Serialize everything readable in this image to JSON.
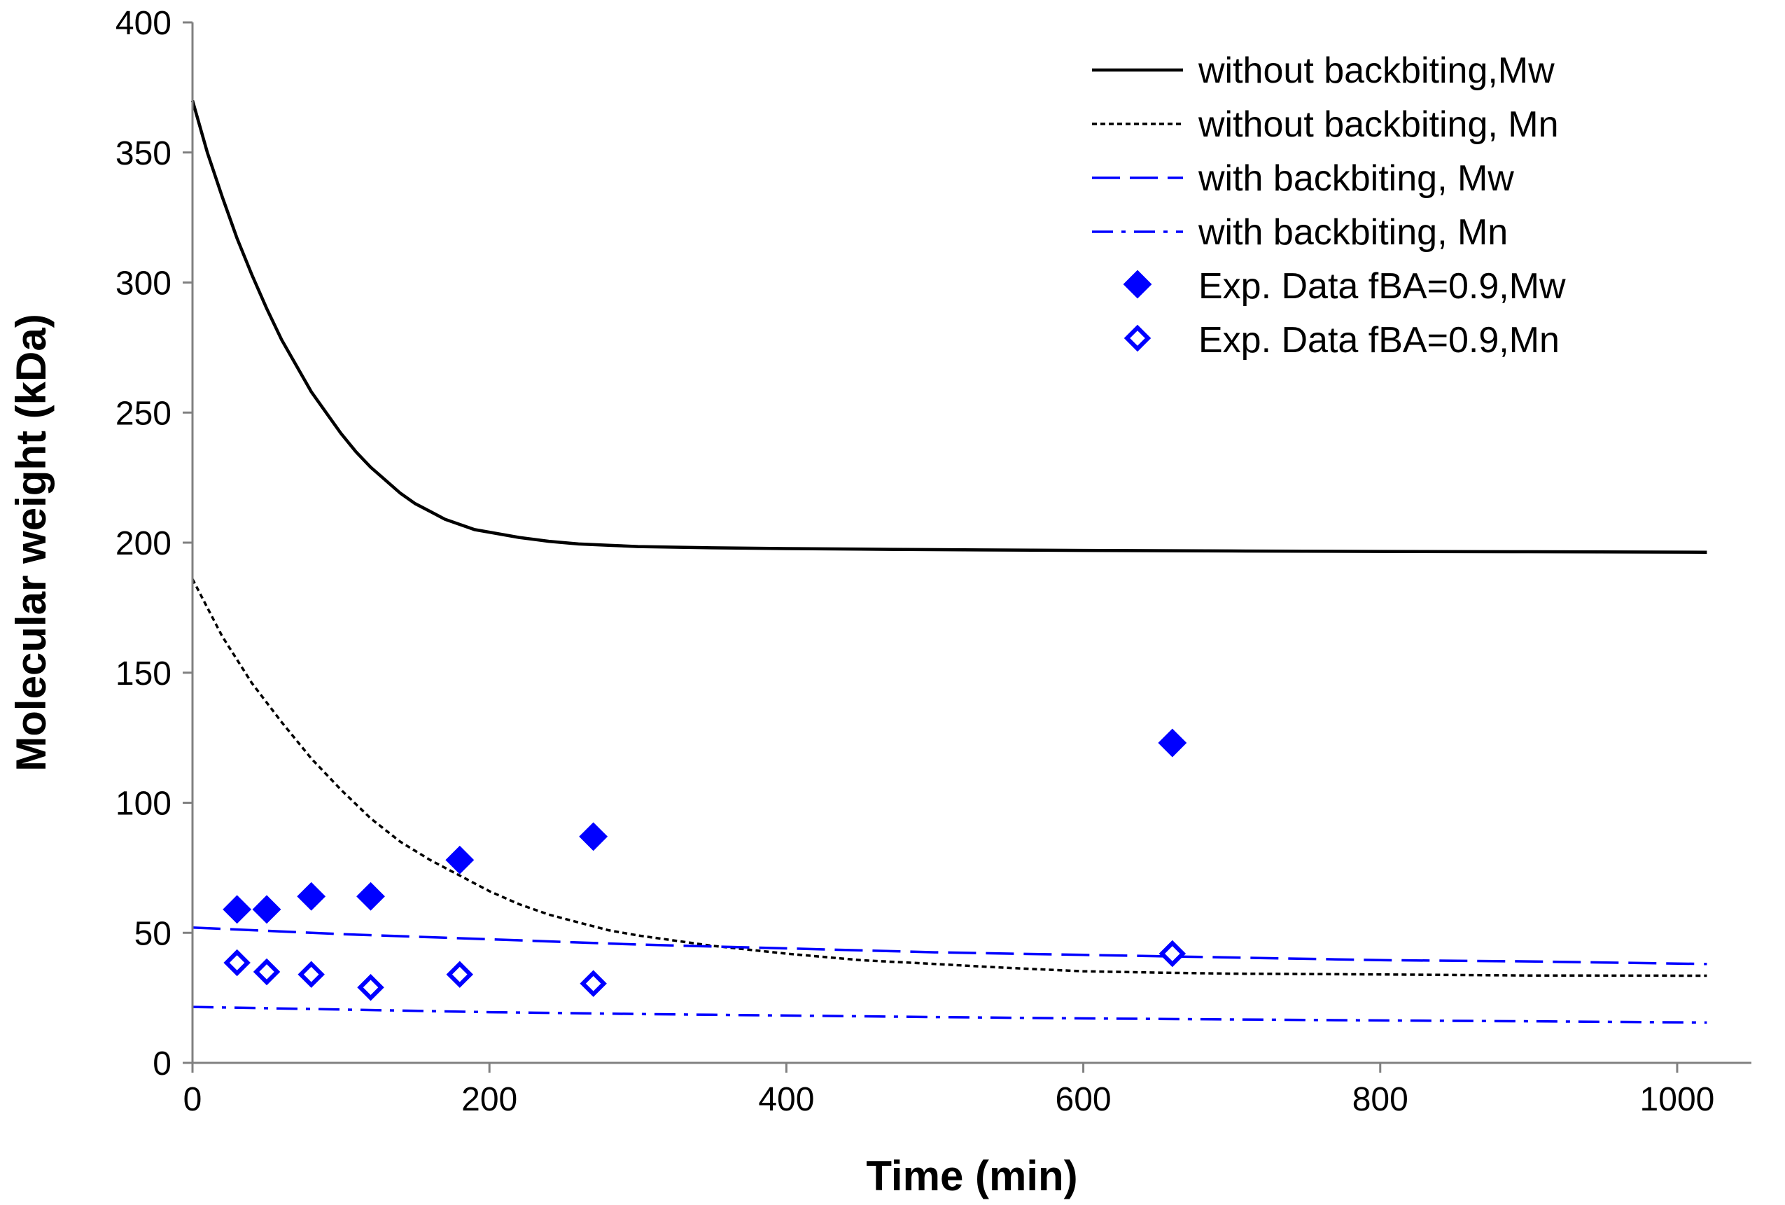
{
  "chart_data": {
    "type": "line",
    "title": "",
    "xlabel": "Time (min)",
    "ylabel": "Molecular weight (kDa)",
    "xlim": [
      0,
      1050
    ],
    "ylim": [
      0,
      400
    ],
    "xticks": [
      0,
      200,
      400,
      600,
      800,
      1000
    ],
    "yticks": [
      0,
      50,
      100,
      150,
      200,
      250,
      300,
      350,
      400
    ],
    "grid": false,
    "legend_position": "top-right",
    "series": [
      {
        "name": "without backbiting,Mw",
        "kind": "line",
        "style": "solid",
        "color": "#000000",
        "x": [
          0,
          10,
          20,
          30,
          40,
          50,
          60,
          70,
          80,
          90,
          100,
          110,
          120,
          130,
          140,
          150,
          160,
          170,
          180,
          190,
          200,
          220,
          240,
          260,
          280,
          300,
          350,
          400,
          450,
          500,
          600,
          700,
          800,
          900,
          1020
        ],
        "y": [
          370,
          350,
          333,
          317,
          303,
          290,
          278,
          268,
          258,
          250,
          242,
          235,
          229,
          224,
          219,
          215,
          212,
          209,
          207,
          205,
          204,
          202,
          200.5,
          199.5,
          199,
          198.5,
          198,
          197.7,
          197.5,
          197.3,
          197,
          196.8,
          196.6,
          196.5,
          196.3
        ]
      },
      {
        "name": "without backbiting, Mn",
        "kind": "line",
        "style": "dotted",
        "color": "#000000",
        "x": [
          0,
          20,
          40,
          60,
          80,
          100,
          120,
          140,
          160,
          180,
          200,
          220,
          240,
          260,
          280,
          300,
          350,
          400,
          450,
          500,
          550,
          600,
          650,
          700,
          800,
          900,
          1020
        ],
        "y": [
          186,
          164,
          146,
          131,
          117,
          105,
          94,
          85,
          78,
          72,
          66,
          61,
          57,
          54,
          51,
          49,
          45,
          42,
          39.5,
          38,
          36.5,
          35.2,
          34.7,
          34.3,
          34,
          33.6,
          33.5
        ]
      },
      {
        "name": "with backbiting, Mw",
        "kind": "line",
        "style": "dashed",
        "color": "#0000ff",
        "x": [
          0,
          100,
          200,
          300,
          400,
          500,
          600,
          700,
          800,
          900,
          1020
        ],
        "y": [
          52,
          49.5,
          47.5,
          45.5,
          44,
          42.5,
          41.5,
          40.5,
          39.5,
          39,
          38
        ]
      },
      {
        "name": "with backbiting, Mn",
        "kind": "line",
        "style": "dashdot",
        "color": "#0000ff",
        "x": [
          0,
          100,
          200,
          300,
          400,
          500,
          600,
          700,
          800,
          900,
          1020
        ],
        "y": [
          21.5,
          20.5,
          19.5,
          18.8,
          18.2,
          17.6,
          17.1,
          16.7,
          16.3,
          16,
          15.5
        ]
      },
      {
        "name": "Exp. Data fBA=0.9,Mw",
        "kind": "scatter",
        "marker": "filled-diamond",
        "color": "#0000ff",
        "x": [
          30,
          50,
          80,
          120,
          180,
          270,
          660
        ],
        "y": [
          59,
          59,
          64,
          64,
          78,
          87,
          123
        ]
      },
      {
        "name": "Exp. Data fBA=0.9,Mn",
        "kind": "scatter",
        "marker": "open-diamond",
        "color": "#0000ff",
        "x": [
          30,
          50,
          80,
          120,
          180,
          270,
          660
        ],
        "y": [
          38.5,
          35,
          34,
          29,
          34,
          30.5,
          42
        ]
      }
    ]
  }
}
